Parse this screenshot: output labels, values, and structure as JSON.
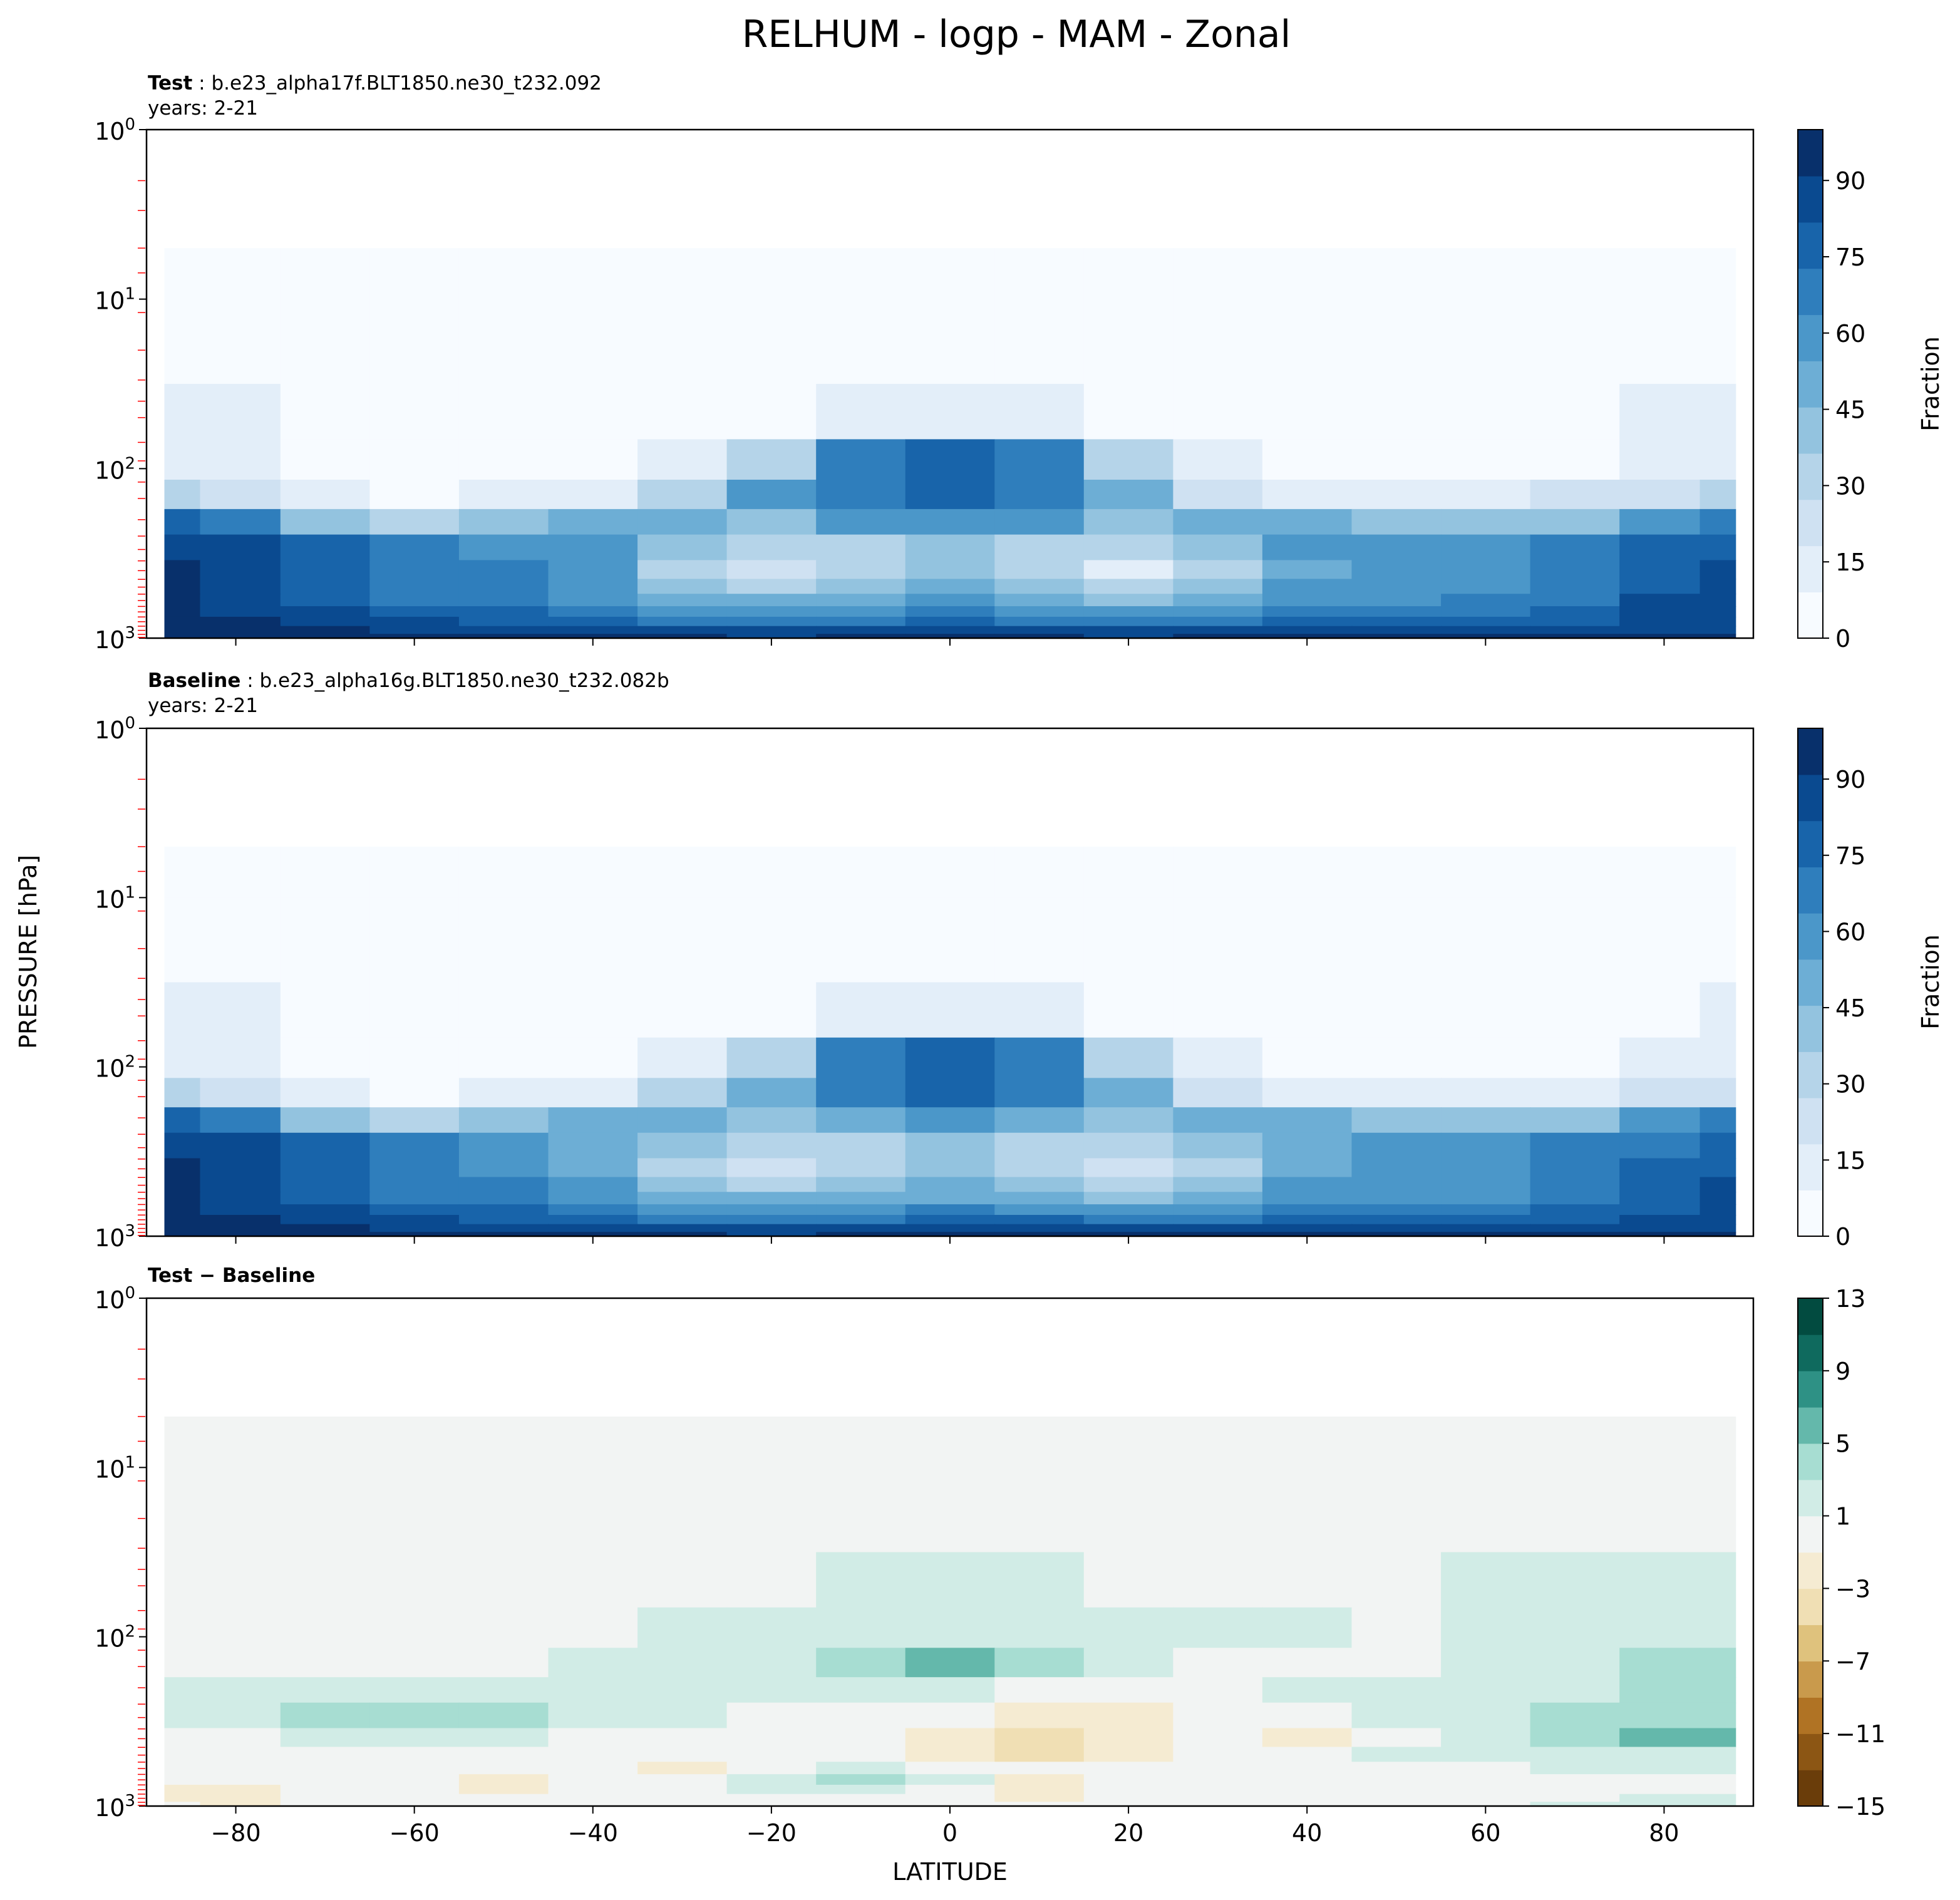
{
  "figure": {
    "suptitle": "RELHUM - logp - MAM - Zonal",
    "ylabel": "PRESSURE [hPa]",
    "xlabel": "LATITUDE"
  },
  "panels": [
    {
      "title_bold": "Test",
      "title_rest": " : b.e23_alpha17f.BLT1850.ne30_t232.092",
      "subtitle": "years: 2-21",
      "colorbar_label": "Fraction",
      "colorbar_ticks": [
        "0",
        "15",
        "30",
        "45",
        "60",
        "75",
        "90"
      ]
    },
    {
      "title_bold": "Baseline",
      "title_rest": " : b.e23_alpha16g.BLT1850.ne30_t232.082b",
      "subtitle": "years: 2-21",
      "colorbar_label": "Fraction",
      "colorbar_ticks": [
        "0",
        "15",
        "30",
        "45",
        "60",
        "75",
        "90"
      ]
    },
    {
      "title_bold": "Test − Baseline",
      "title_rest": "",
      "subtitle": "",
      "colorbar_label": "",
      "colorbar_ticks": [
        "−15",
        "−11",
        "−7",
        "−3",
        "1",
        "5",
        "9",
        "13"
      ]
    }
  ],
  "axes": {
    "x_ticks": [
      "−80",
      "−60",
      "−40",
      "−20",
      "0",
      "20",
      "40",
      "60",
      "80"
    ],
    "y_ticks": [
      "10",
      "10",
      "10",
      "10"
    ],
    "y_tick_exponents": [
      "0",
      "1",
      "2",
      "3"
    ]
  },
  "colors": {
    "blues": [
      "#f7fbff",
      "#e3eef9",
      "#cfe1f2",
      "#b5d4e9",
      "#93c3df",
      "#6daed5",
      "#4b97c9",
      "#2f7ebc",
      "#1864aa",
      "#0a4a90",
      "#08306b"
    ],
    "diff": [
      "#6a3d0a",
      "#8c5614",
      "#b07324",
      "#c99a4c",
      "#dfc27d",
      "#f0dfb4",
      "#f5ebd2",
      "#f2f4f3",
      "#d1ece6",
      "#a7ddd2",
      "#64b8ab",
      "#2e9185",
      "#0f6a5e",
      "#024b40"
    ],
    "ticks_red": "#ff0000"
  },
  "chart_data": [
    {
      "type": "heatmap",
      "name": "Test",
      "title": "Test : b.e23_alpha17f.BLT1850.ne30_t232.092",
      "subtitle": "years: 2-21",
      "xlabel": "LATITUDE",
      "ylabel": "PRESSURE [hPa]",
      "xlim": [
        -90,
        90
      ],
      "ylim_hPa": [
        1000,
        1
      ],
      "y_scale": "log",
      "colorbar": {
        "label": "Fraction",
        "range": [
          0,
          100
        ],
        "ticks": [
          0,
          15,
          30,
          45,
          60,
          75,
          90
        ]
      },
      "latitudes": [
        -88,
        -80,
        -70,
        -60,
        -50,
        -40,
        -30,
        -20,
        -10,
        0,
        10,
        20,
        30,
        40,
        50,
        60,
        70,
        80,
        88
      ],
      "pressure_levels_hPa": [
        5,
        20,
        50,
        90,
        150,
        200,
        300,
        400,
        500,
        600,
        700,
        800,
        900,
        990
      ],
      "values": [
        [
          4,
          4,
          4,
          4,
          4,
          4,
          4,
          4,
          4,
          4,
          4,
          4,
          4,
          4,
          4,
          4,
          4,
          4,
          4
        ],
        [
          9,
          8,
          6,
          4,
          4,
          4,
          4,
          4,
          4,
          4,
          4,
          4,
          4,
          4,
          4,
          4,
          5,
          6,
          7
        ],
        [
          14,
          12,
          7,
          5,
          5,
          5,
          6,
          9,
          12,
          13,
          12,
          9,
          6,
          5,
          5,
          6,
          8,
          11,
          12
        ],
        [
          14,
          12,
          6,
          5,
          5,
          8,
          14,
          35,
          72,
          80,
          72,
          35,
          12,
          9,
          7,
          6,
          9,
          12,
          13
        ],
        [
          30,
          20,
          12,
          9,
          12,
          18,
          30,
          55,
          70,
          75,
          70,
          50,
          25,
          15,
          12,
          15,
          20,
          25,
          30
        ],
        [
          80,
          65,
          40,
          30,
          40,
          48,
          50,
          45,
          55,
          60,
          55,
          45,
          48,
          50,
          45,
          40,
          45,
          60,
          70
        ],
        [
          90,
          82,
          75,
          68,
          62,
          55,
          45,
          35,
          35,
          38,
          32,
          30,
          40,
          55,
          62,
          62,
          68,
          75,
          80
        ],
        [
          92,
          84,
          78,
          70,
          64,
          55,
          35,
          22,
          30,
          38,
          28,
          18,
          35,
          52,
          60,
          62,
          70,
          78,
          82
        ],
        [
          95,
          86,
          78,
          70,
          65,
          55,
          42,
          30,
          42,
          50,
          40,
          30,
          42,
          55,
          60,
          62,
          70,
          80,
          84
        ],
        [
          96,
          88,
          80,
          72,
          68,
          60,
          52,
          46,
          52,
          55,
          50,
          44,
          52,
          58,
          62,
          64,
          72,
          82,
          84
        ],
        [
          96,
          90,
          83,
          78,
          74,
          68,
          60,
          55,
          62,
          66,
          60,
          55,
          60,
          64,
          66,
          68,
          74,
          82,
          84
        ],
        [
          96,
          92,
          86,
          82,
          78,
          74,
          70,
          68,
          72,
          75,
          72,
          70,
          72,
          74,
          76,
          76,
          80,
          84,
          86
        ],
        [
          96,
          93,
          92,
          90,
          88,
          86,
          84,
          82,
          83,
          85,
          83,
          82,
          83,
          85,
          86,
          86,
          87,
          88,
          90
        ],
        [
          98,
          96,
          94,
          93,
          92,
          92,
          91,
          90,
          92,
          94,
          92,
          90,
          91,
          92,
          92,
          92,
          93,
          94,
          95
        ]
      ]
    },
    {
      "type": "heatmap",
      "name": "Baseline",
      "title": "Baseline : b.e23_alpha16g.BLT1850.ne30_t232.082b",
      "subtitle": "years: 2-21",
      "xlabel": "LATITUDE",
      "ylabel": "PRESSURE [hPa]",
      "xlim": [
        -90,
        90
      ],
      "ylim_hPa": [
        1000,
        1
      ],
      "y_scale": "log",
      "colorbar": {
        "label": "Fraction",
        "range": [
          0,
          100
        ],
        "ticks": [
          0,
          15,
          30,
          45,
          60,
          75,
          90
        ]
      },
      "latitudes": [
        -88,
        -80,
        -70,
        -60,
        -50,
        -40,
        -30,
        -20,
        -10,
        0,
        10,
        20,
        30,
        40,
        50,
        60,
        70,
        80,
        88
      ],
      "pressure_levels_hPa": [
        5,
        20,
        50,
        90,
        150,
        200,
        300,
        400,
        500,
        600,
        700,
        800,
        900,
        990
      ],
      "values": [
        [
          4,
          4,
          4,
          4,
          4,
          4,
          4,
          4,
          4,
          4,
          4,
          4,
          4,
          4,
          4,
          4,
          4,
          4,
          4
        ],
        [
          9,
          8,
          6,
          4,
          4,
          4,
          4,
          4,
          4,
          4,
          4,
          4,
          4,
          4,
          4,
          4,
          5,
          5,
          6
        ],
        [
          14,
          12,
          7,
          5,
          5,
          5,
          6,
          8,
          11,
          12,
          11,
          8,
          6,
          5,
          5,
          5,
          7,
          9,
          10
        ],
        [
          14,
          12,
          6,
          5,
          5,
          7,
          13,
          33,
          70,
          78,
          70,
          33,
          11,
          8,
          7,
          6,
          8,
          10,
          11
        ],
        [
          30,
          20,
          12,
          9,
          11,
          17,
          28,
          53,
          68,
          73,
          68,
          48,
          24,
          14,
          12,
          14,
          18,
          22,
          26
        ],
        [
          80,
          65,
          40,
          30,
          38,
          46,
          48,
          44,
          53,
          58,
          54,
          44,
          46,
          48,
          44,
          38,
          42,
          55,
          65
        ],
        [
          90,
          82,
          75,
          66,
          60,
          53,
          44,
          34,
          34,
          37,
          31,
          29,
          39,
          54,
          60,
          60,
          66,
          72,
          78
        ],
        [
          92,
          84,
          78,
          69,
          63,
          54,
          35,
          22,
          29,
          37,
          29,
          19,
          34,
          52,
          59,
          61,
          68,
          76,
          80
        ],
        [
          95,
          86,
          78,
          70,
          64,
          55,
          42,
          30,
          41,
          49,
          41,
          31,
          42,
          55,
          59,
          61,
          69,
          78,
          82
        ],
        [
          96,
          88,
          80,
          72,
          67,
          60,
          52,
          46,
          51,
          54,
          51,
          45,
          52,
          58,
          61,
          63,
          71,
          80,
          83
        ],
        [
          96,
          90,
          83,
          78,
          73,
          68,
          60,
          55,
          61,
          65,
          61,
          56,
          60,
          64,
          65,
          67,
          73,
          81,
          83
        ],
        [
          96,
          92,
          86,
          82,
          78,
          74,
          70,
          68,
          71,
          74,
          73,
          71,
          72,
          74,
          75,
          75,
          79,
          83,
          85
        ],
        [
          96,
          93,
          92,
          90,
          88,
          86,
          84,
          82,
          82,
          84,
          84,
          83,
          83,
          85,
          85,
          85,
          86,
          87,
          89
        ],
        [
          98,
          96,
          94,
          93,
          92,
          92,
          91,
          90,
          91,
          93,
          93,
          91,
          91,
          92,
          92,
          92,
          92,
          93,
          94
        ]
      ]
    },
    {
      "type": "heatmap",
      "name": "Test − Baseline",
      "title": "Test − Baseline",
      "xlabel": "LATITUDE",
      "ylabel": "PRESSURE [hPa]",
      "xlim": [
        -90,
        90
      ],
      "ylim_hPa": [
        1000,
        1
      ],
      "y_scale": "log",
      "colorbar": {
        "label": "",
        "range": [
          -15,
          13
        ],
        "ticks": [
          -15,
          -11,
          -7,
          -3,
          1,
          5,
          9,
          13
        ]
      },
      "latitudes": [
        -88,
        -80,
        -70,
        -60,
        -50,
        -40,
        -30,
        -20,
        -10,
        0,
        10,
        20,
        30,
        40,
        50,
        60,
        70,
        80,
        88
      ],
      "pressure_levels_hPa": [
        5,
        20,
        50,
        90,
        150,
        200,
        300,
        400,
        500,
        600,
        700,
        800,
        900,
        990
      ],
      "values": [
        [
          0,
          0,
          0,
          0,
          0,
          0,
          0,
          0,
          0,
          0,
          0,
          0,
          0,
          0,
          0,
          0,
          0,
          0,
          0
        ],
        [
          0,
          0,
          0,
          0,
          0,
          0,
          0,
          0,
          0,
          0,
          0,
          0,
          0,
          0,
          0,
          0,
          0,
          0,
          0
        ],
        [
          0,
          0,
          0,
          0,
          0,
          0,
          0,
          0.5,
          1,
          1,
          1,
          0.5,
          0,
          0,
          0,
          1,
          1.5,
          2.5,
          2.5
        ],
        [
          0,
          0,
          0,
          0,
          0,
          0.5,
          1,
          2,
          2,
          2,
          2,
          2,
          1,
          1,
          0.5,
          1,
          2,
          2.5,
          2.5
        ],
        [
          0,
          0,
          0,
          0,
          0.5,
          1,
          1.5,
          2,
          4,
          5,
          4,
          2,
          0.5,
          0.5,
          0.5,
          1.5,
          2,
          3,
          3
        ],
        [
          1,
          1,
          1.5,
          1.5,
          2,
          2,
          2,
          1.5,
          1.5,
          1.5,
          0.5,
          0,
          0,
          1,
          1,
          2,
          2.5,
          3,
          3
        ],
        [
          2,
          2,
          3,
          3,
          3.5,
          2,
          1,
          0.5,
          0.5,
          -1,
          -2,
          -2,
          -1,
          0,
          1,
          2.5,
          4,
          4.5,
          4
        ],
        [
          0.5,
          0.5,
          1,
          1,
          1,
          0.5,
          0,
          0,
          0,
          -2,
          -4,
          -3,
          -1,
          -2,
          0.5,
          2,
          3,
          5,
          6
        ],
        [
          0,
          0,
          0,
          0,
          0,
          0,
          0,
          0,
          0,
          -3,
          -5,
          -3,
          -1,
          0,
          1,
          1,
          1.5,
          2,
          2
        ],
        [
          0,
          0,
          0,
          0,
          0,
          0,
          -2,
          0,
          1.5,
          0.5,
          -1,
          -1,
          0,
          0,
          0,
          0.5,
          1,
          1,
          1
        ],
        [
          -1,
          0,
          0,
          0,
          -2,
          0,
          0,
          1.5,
          3.5,
          1,
          -2,
          0,
          0,
          0,
          0,
          0,
          0,
          0,
          0
        ],
        [
          -2,
          -2,
          0,
          0,
          -1.5,
          0,
          0,
          1.5,
          1.5,
          0.5,
          -2,
          -1,
          0,
          0,
          0,
          0,
          0,
          0,
          0
        ],
        [
          -1.5,
          -2.5,
          -1,
          0,
          0,
          -1,
          0,
          0,
          0,
          0,
          -2,
          0,
          0,
          0,
          0,
          0,
          0.5,
          1,
          1.5
        ],
        [
          -1,
          -2,
          0,
          0,
          0,
          0,
          0,
          0,
          0,
          0,
          0,
          0,
          0,
          0,
          0,
          0.5,
          1,
          1.5,
          2
        ]
      ]
    }
  ]
}
